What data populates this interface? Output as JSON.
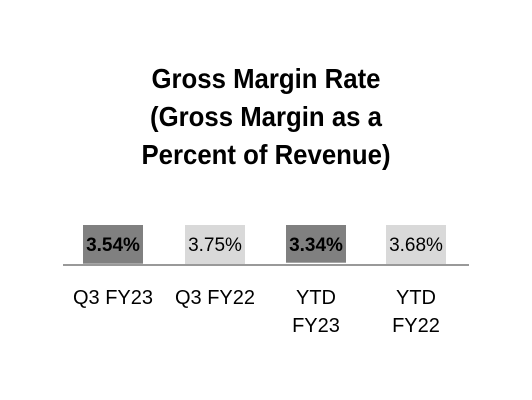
{
  "chart_data": {
    "type": "bar",
    "title_lines": [
      "Gross Margin Rate",
      "(Gross Margin as a",
      "Percent of Revenue)"
    ],
    "categories": [
      [
        "Q3 FY23"
      ],
      [
        "Q3 FY22"
      ],
      [
        "YTD",
        "FY23"
      ],
      [
        "YTD",
        "FY22"
      ]
    ],
    "values": [
      3.54,
      3.75,
      3.34,
      3.68
    ],
    "value_labels": [
      "3.54%",
      "3.75%",
      "3.34%",
      "3.68%"
    ],
    "bar_colors": [
      "#808080",
      "#d9d9d9",
      "#808080",
      "#d9d9d9"
    ],
    "label_bold": [
      true,
      false,
      true,
      false
    ],
    "xlabel": "",
    "ylabel": "",
    "grid": false,
    "legend": "none"
  }
}
